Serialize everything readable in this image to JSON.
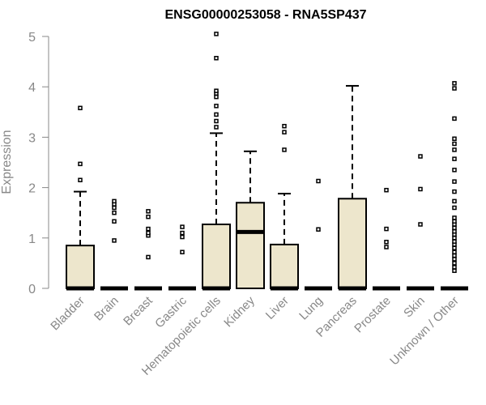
{
  "chart_data": {
    "type": "box",
    "title": "ENSG00000253058 - RNA5SP437",
    "ylabel": "Expression",
    "xlabel": "",
    "ylim": [
      0,
      5
    ],
    "yticks": [
      0,
      1,
      2,
      3,
      4,
      5
    ],
    "grid": false,
    "box_color": "#ede6cc",
    "categories": [
      "Bladder",
      "Brain",
      "Breast",
      "Gastric",
      "Hematopoietic cells",
      "Kidney",
      "Liver",
      "Lung",
      "Pancreas",
      "Prostate",
      "Skin",
      "Unknown / Other"
    ],
    "boxes": [
      {
        "q1": 0,
        "median": 0,
        "q3": 0.85,
        "whisker_low": 0,
        "whisker_high": 1.92,
        "outliers": [
          2.15,
          2.47,
          3.58
        ]
      },
      {
        "q1": 0,
        "median": 0,
        "q3": 0,
        "whisker_low": 0,
        "whisker_high": 0,
        "outliers": [
          0.95,
          1.33,
          1.5,
          1.6,
          1.67,
          1.73
        ]
      },
      {
        "q1": 0,
        "median": 0,
        "q3": 0,
        "whisker_low": 0,
        "whisker_high": 0,
        "outliers": [
          0.62,
          1.05,
          1.1,
          1.18,
          1.42,
          1.53
        ]
      },
      {
        "q1": 0,
        "median": 0,
        "q3": 0,
        "whisker_low": 0,
        "whisker_high": 0,
        "outliers": [
          0.72,
          1.02,
          1.1,
          1.22
        ]
      },
      {
        "q1": 0,
        "median": 0,
        "q3": 1.27,
        "whisker_low": 0,
        "whisker_high": 3.08,
        "outliers": [
          3.2,
          3.32,
          3.45,
          3.62,
          3.8,
          3.87,
          3.92,
          4.57,
          5.05
        ]
      },
      {
        "q1": 0,
        "median": 1.12,
        "q3": 1.7,
        "whisker_low": 0,
        "whisker_high": 2.72,
        "outliers": []
      },
      {
        "q1": 0,
        "median": 0,
        "q3": 0.87,
        "whisker_low": 0,
        "whisker_high": 1.88,
        "outliers": [
          2.75,
          3.1,
          3.22
        ]
      },
      {
        "q1": 0,
        "median": 0,
        "q3": 0,
        "whisker_low": 0,
        "whisker_high": 0,
        "outliers": [
          1.17,
          2.13
        ]
      },
      {
        "q1": 0,
        "median": 0,
        "q3": 1.78,
        "whisker_low": 0,
        "whisker_high": 4.02,
        "outliers": []
      },
      {
        "q1": 0,
        "median": 0,
        "q3": 0,
        "whisker_low": 0,
        "whisker_high": 0,
        "outliers": [
          0.82,
          0.92,
          1.18,
          1.95
        ]
      },
      {
        "q1": 0,
        "median": 0,
        "q3": 0,
        "whisker_low": 0,
        "whisker_high": 0,
        "outliers": [
          1.27,
          1.97,
          2.62
        ]
      },
      {
        "q1": 0,
        "median": 0,
        "q3": 0,
        "whisker_low": 0,
        "whisker_high": 0,
        "outliers": [
          0.35,
          0.42,
          0.5,
          0.58,
          0.65,
          0.72,
          0.8,
          0.87,
          0.93,
          1.0,
          1.07,
          1.13,
          1.2,
          1.27,
          1.33,
          1.4,
          1.6,
          1.73,
          1.92,
          2.12,
          2.35,
          2.57,
          2.75,
          2.87,
          2.97,
          3.37,
          3.97,
          4.07
        ]
      }
    ]
  }
}
